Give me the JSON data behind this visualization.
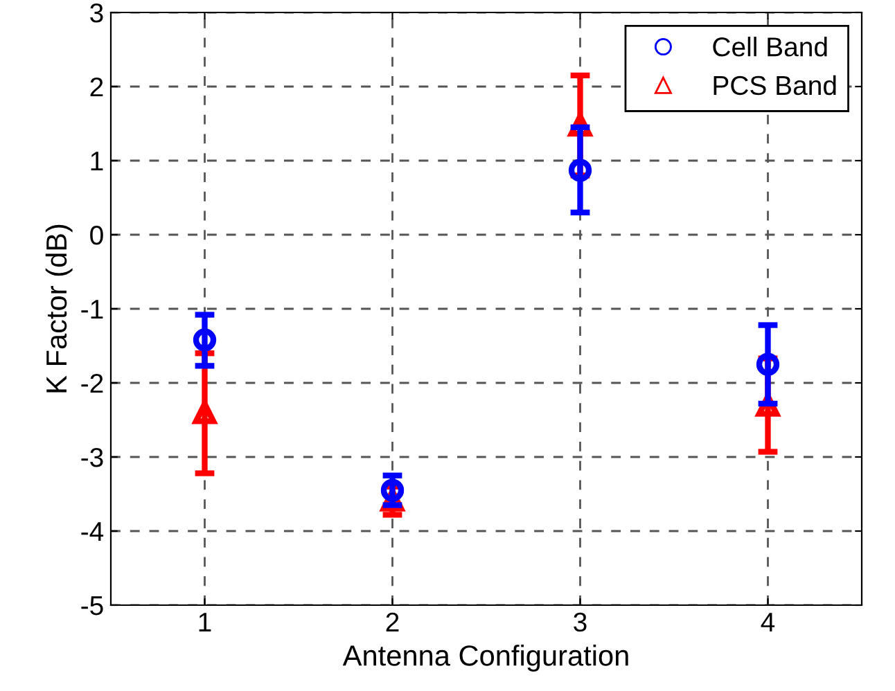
{
  "chart_data": {
    "type": "scatter",
    "xlabel": "Antenna Configuration",
    "ylabel": "K Factor (dB)",
    "x": [
      1,
      2,
      3,
      4
    ],
    "xlim": [
      0.5,
      4.5
    ],
    "xticks": [
      1,
      2,
      3,
      4
    ],
    "ylim": [
      -5,
      3
    ],
    "yticks": [
      -5,
      -4,
      -3,
      -2,
      -1,
      0,
      1,
      2,
      3
    ],
    "grid": true,
    "legend": "top right",
    "series": [
      {
        "name": "Cell Band",
        "color": "#0000ff",
        "marker": "circle",
        "values": [
          -1.42,
          -3.45,
          0.87,
          -1.75
        ],
        "errors": [
          [
            -1.77,
            -1.08
          ],
          [
            -3.65,
            -3.25
          ],
          [
            0.3,
            1.45
          ],
          [
            -2.28,
            -1.22
          ]
        ]
      },
      {
        "name": "PCS Band",
        "color": "#ff0000",
        "marker": "triangle",
        "values": [
          -2.4,
          -3.58,
          1.48,
          -2.3
        ],
        "errors": [
          [
            -3.22,
            -1.6
          ],
          [
            -3.78,
            -3.4
          ],
          [
            0.8,
            2.15
          ],
          [
            -2.93,
            -1.67
          ]
        ]
      }
    ]
  }
}
